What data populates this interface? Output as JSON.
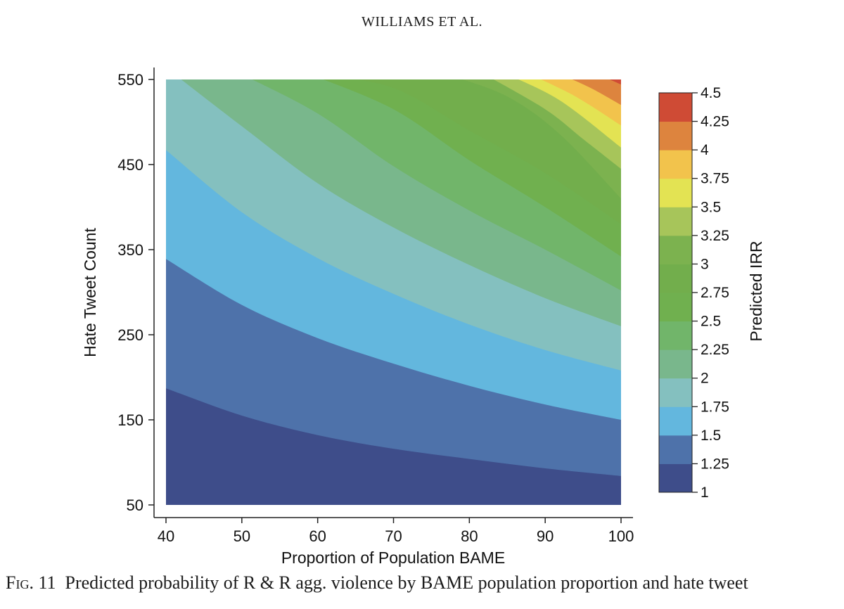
{
  "header": {
    "running_head": "WILLIAMS ET AL."
  },
  "caption": {
    "label": "Fig. 11",
    "text": "Predicted probability of R & R agg. violence by BAME population proportion and hate tweet"
  },
  "chart_data": {
    "type": "contour",
    "xlabel": "Proportion of Population BAME",
    "ylabel": "Hate Tweet Count",
    "colorbar_label": "Predicted IRR",
    "xlim": [
      40,
      100
    ],
    "ylim": [
      50,
      550
    ],
    "xticks": [
      "40",
      "50",
      "60",
      "70",
      "80",
      "90",
      "100"
    ],
    "yticks": [
      "50",
      "150",
      "250",
      "350",
      "450",
      "550"
    ],
    "colorbar_ticks": [
      "1",
      "1.25",
      "1.5",
      "1.75",
      "2",
      "2.25",
      "2.5",
      "2.75",
      "3",
      "3.25",
      "3.5",
      "3.75",
      "4",
      "4.25",
      "4.5"
    ],
    "levels": [
      1,
      1.25,
      1.5,
      1.75,
      2,
      2.25,
      2.5,
      2.75,
      3,
      3.25,
      3.5,
      3.75,
      4,
      4.25,
      4.5
    ],
    "colors": [
      "#3e4d8a",
      "#4e72aa",
      "#63b7de",
      "#84c0bf",
      "#79b78c",
      "#71b56a",
      "#70b04f",
      "#72ae4c",
      "#7cb24f",
      "#a7c55a",
      "#e3e353",
      "#f2c34c",
      "#dd843e",
      "#cf4b35"
    ],
    "contour_lines": [
      {
        "level": 1.25,
        "points": [
          [
            40,
            187
          ],
          [
            50,
            155
          ],
          [
            60,
            132
          ],
          [
            70,
            116
          ],
          [
            80,
            104
          ],
          [
            90,
            93
          ],
          [
            100,
            84
          ]
        ]
      },
      {
        "level": 1.5,
        "points": [
          [
            40,
            339
          ],
          [
            50,
            285
          ],
          [
            60,
            246
          ],
          [
            70,
            216
          ],
          [
            80,
            190
          ],
          [
            90,
            168
          ],
          [
            100,
            150
          ]
        ]
      },
      {
        "level": 1.75,
        "points": [
          [
            40,
            467
          ],
          [
            50,
            394
          ],
          [
            60,
            340
          ],
          [
            70,
            298
          ],
          [
            80,
            262
          ],
          [
            90,
            232
          ],
          [
            100,
            208
          ]
        ]
      },
      {
        "level": 2,
        "points": [
          [
            42,
            550
          ],
          [
            50,
            495
          ],
          [
            60,
            428
          ],
          [
            70,
            376
          ],
          [
            80,
            332
          ],
          [
            90,
            293
          ],
          [
            100,
            260
          ]
        ]
      },
      {
        "level": 2.25,
        "points": [
          [
            50,
            556
          ],
          [
            60,
            510
          ],
          [
            70,
            448
          ],
          [
            80,
            396
          ],
          [
            90,
            350
          ],
          [
            100,
            302
          ]
        ]
      },
      {
        "level": 2.5,
        "points": [
          [
            59,
            556
          ],
          [
            70,
            515
          ],
          [
            80,
            455
          ],
          [
            90,
            400
          ],
          [
            100,
            342
          ]
        ]
      },
      {
        "level": 2.75,
        "points": [
          [
            60,
            556
          ],
          [
            70,
            540
          ],
          [
            80,
            490
          ],
          [
            90,
            440
          ],
          [
            100,
            380
          ]
        ]
      },
      {
        "level": 3,
        "points": [
          [
            77,
            556
          ],
          [
            85,
            530
          ],
          [
            92,
            485
          ],
          [
            100,
            410
          ]
        ]
      },
      {
        "level": 3.25,
        "points": [
          [
            82,
            556
          ],
          [
            90,
            515
          ],
          [
            95,
            480
          ],
          [
            100,
            445
          ]
        ]
      },
      {
        "level": 3.5,
        "points": [
          [
            85,
            556
          ],
          [
            92,
            525
          ],
          [
            100,
            470
          ]
        ]
      },
      {
        "level": 3.75,
        "points": [
          [
            88,
            556
          ],
          [
            94,
            530
          ],
          [
            100,
            496
          ]
        ]
      },
      {
        "level": 4,
        "points": [
          [
            92,
            556
          ],
          [
            96,
            540
          ],
          [
            100,
            520
          ]
        ]
      },
      {
        "level": 4.25,
        "points": [
          [
            97,
            556
          ],
          [
            99,
            548
          ],
          [
            100,
            544
          ]
        ]
      }
    ]
  }
}
